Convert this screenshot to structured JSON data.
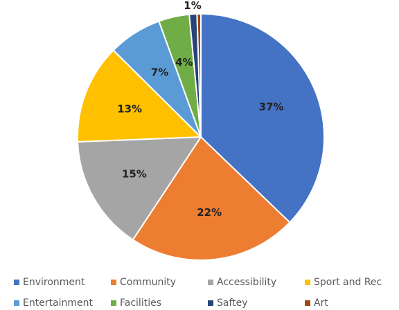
{
  "chart_data": {
    "type": "pie",
    "categories": [
      "Environment",
      "Community",
      "Accessibility",
      "Sport and Rec",
      "Entertainment",
      "Facilities",
      "Saftey",
      "Art"
    ],
    "values": [
      37,
      22,
      15,
      13,
      7,
      4,
      1,
      0.5
    ],
    "value_labels": [
      "37%",
      "22%",
      "15%",
      "13%",
      "7%",
      "4%",
      "1%",
      null
    ],
    "colors": [
      "#4472c4",
      "#ed7d31",
      "#a5a5a5",
      "#ffc000",
      "#5b9bd5",
      "#70ad47",
      "#264478",
      "#9e480e"
    ],
    "legend": "bottom"
  }
}
